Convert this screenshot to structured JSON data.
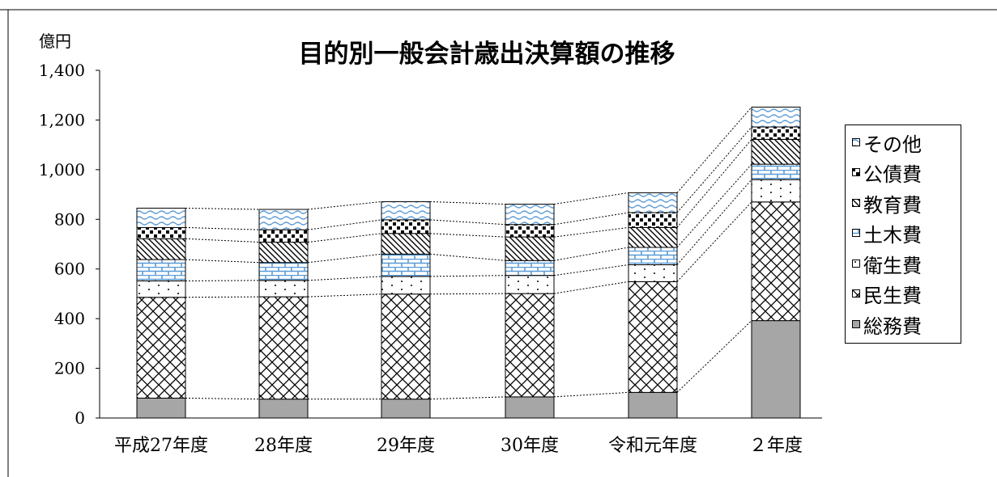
{
  "chart_data": {
    "type": "bar",
    "stacked": true,
    "title": "目的別一般会計歳出決算額の推移",
    "ylabel": "億円",
    "xlabel": "",
    "ylim": [
      0,
      1400
    ],
    "yticks": [
      0,
      200,
      400,
      600,
      800,
      1000,
      1200,
      1400
    ],
    "ytick_labels": [
      "0",
      "200",
      "400",
      "600",
      "800",
      "1,000",
      "1,200",
      "1,400"
    ],
    "categories": [
      "平成27年度",
      "28年度",
      "29年度",
      "30年度",
      "令和元年度",
      "２年度"
    ],
    "legend_position": "right",
    "connector_lines": true,
    "series": [
      {
        "name": "総務費",
        "pattern": "solid-gray",
        "color": "#a6a6a6",
        "values": [
          80,
          76,
          76,
          85,
          103,
          392
        ]
      },
      {
        "name": "民生費",
        "pattern": "crosshatch",
        "color": "#000000",
        "values": [
          406,
          412,
          423,
          416,
          446,
          478
        ]
      },
      {
        "name": "衛生費",
        "pattern": "dots",
        "color": "#000000",
        "values": [
          66,
          66,
          71,
          73,
          68,
          90
        ]
      },
      {
        "name": "土木費",
        "pattern": "brick",
        "color": "#5b9bd5",
        "values": [
          86,
          72,
          90,
          60,
          70,
          62
        ]
      },
      {
        "name": "教育費",
        "pattern": "diagonal",
        "color": "#000000",
        "values": [
          84,
          82,
          83,
          95,
          80,
          100
        ]
      },
      {
        "name": "公債費",
        "pattern": "checker",
        "color": "#000000",
        "values": [
          45,
          50,
          55,
          50,
          60,
          50
        ]
      },
      {
        "name": "その他",
        "pattern": "waves",
        "color": "#5b9bd5",
        "values": [
          78,
          82,
          73,
          82,
          80,
          80
        ]
      }
    ]
  }
}
